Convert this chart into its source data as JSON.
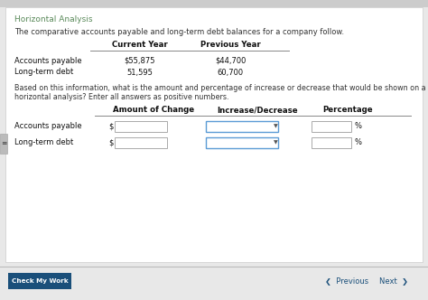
{
  "title": "Horizontal Analysis",
  "title_color": "#5a8a5a",
  "bg_color": "#e8e8e8",
  "content_bg": "#ffffff",
  "intro_text": "The comparative accounts payable and long-term debt balances for a company follow.",
  "col1_header": "Current Year",
  "col2_header": "Previous Year",
  "row1_label": "Accounts payable",
  "row1_col1": "$55,875",
  "row1_col2": "$44,700",
  "row2_label": "Long-term debt",
  "row2_col1": "51,595",
  "row2_col2": "60,700",
  "question_line1": "Based on this information, what is the amount and percentage of increase or decrease that would be shown on a balance sheet with",
  "question_line2": "horizontal analysis? Enter all answers as positive numbers.",
  "t2h1": "Amount of Change",
  "t2h2": "Increase/Decrease",
  "t2h3": "Percentage",
  "row_ap": "Accounts payable",
  "row_ltd": "Long-term debt",
  "bottom_bar_color": "#e8e8e8",
  "check_btn_color": "#1a4f7a",
  "check_btn_text": "Check My Work",
  "prev_text": "Previous",
  "next_text": "Next",
  "nav_color": "#1a4f7a",
  "input_border": "#aaaaaa",
  "dropdown_border": "#5b9bd5",
  "line_color": "#888888",
  "side_tab_color": "#bbbbbb",
  "top_bar_color": "#cccccc"
}
